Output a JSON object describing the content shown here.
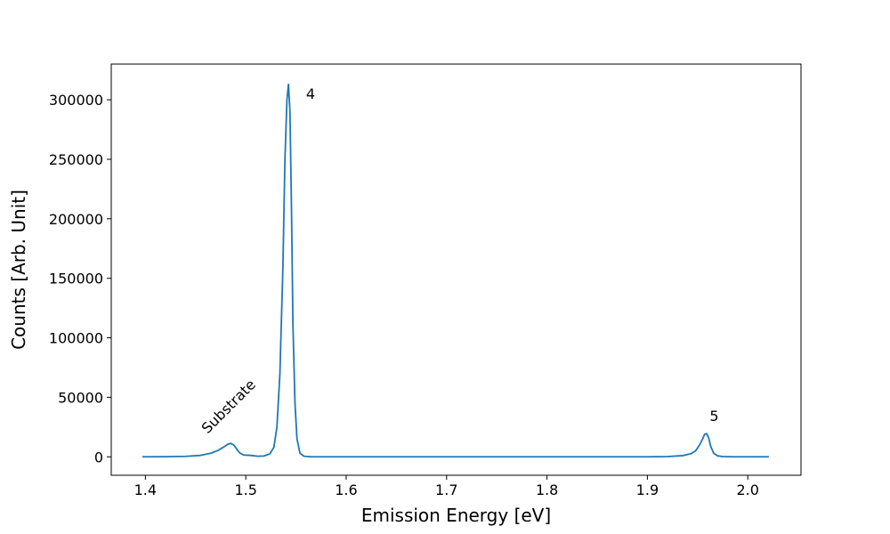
{
  "chart_data": {
    "type": "line",
    "title": "",
    "xlabel": "Emission Energy [eV]",
    "ylabel": "Counts [Arb. Unit]",
    "xlim": [
      1.366,
      2.053
    ],
    "ylim": [
      -15500,
      330000
    ],
    "grid": false,
    "legend": "none",
    "line_color": "#1f77b4",
    "x_ticks": [
      {
        "value": 1.4,
        "label": "1.4"
      },
      {
        "value": 1.5,
        "label": "1.5"
      },
      {
        "value": 1.6,
        "label": "1.6"
      },
      {
        "value": 1.7,
        "label": "1.7"
      },
      {
        "value": 1.8,
        "label": "1.8"
      },
      {
        "value": 1.9,
        "label": "1.9"
      },
      {
        "value": 2.0,
        "label": "2.0"
      }
    ],
    "y_ticks": [
      {
        "value": 0,
        "label": "0"
      },
      {
        "value": 50000,
        "label": "50000"
      },
      {
        "value": 100000,
        "label": "100000"
      },
      {
        "value": 150000,
        "label": "150000"
      },
      {
        "value": 200000,
        "label": "200000"
      },
      {
        "value": 250000,
        "label": "250000"
      },
      {
        "value": 300000,
        "label": "300000"
      }
    ],
    "series": [
      {
        "x": [
          1.397,
          1.42,
          1.44,
          1.455,
          1.465,
          1.472,
          1.478,
          1.482,
          1.485,
          1.488,
          1.491,
          1.494,
          1.498,
          1.505,
          1.512,
          1.518,
          1.524,
          1.528,
          1.531,
          1.534,
          1.537,
          1.539,
          1.541,
          1.5425,
          1.544,
          1.5455,
          1.547,
          1.549,
          1.551,
          1.554,
          1.558,
          1.565,
          1.6,
          1.7,
          1.8,
          1.9,
          1.92,
          1.935,
          1.943,
          1.948,
          1.952,
          1.955,
          1.957,
          1.959,
          1.961,
          1.963,
          1.966,
          1.97,
          1.975,
          1.985,
          2.0,
          2.021
        ],
        "y": [
          0,
          100,
          400,
          1200,
          3000,
          5200,
          8200,
          10500,
          11300,
          10000,
          6500,
          3200,
          1500,
          1200,
          500,
          700,
          2500,
          8000,
          25000,
          70000,
          160000,
          250000,
          300000,
          313000,
          290000,
          210000,
          110000,
          45000,
          15000,
          3000,
          500,
          0,
          0,
          0,
          0,
          0,
          200,
          1000,
          2500,
          5000,
          10000,
          15000,
          19000,
          19500,
          16000,
          9000,
          3000,
          800,
          200,
          0,
          0,
          0
        ]
      }
    ],
    "annotations": [
      {
        "text": "4",
        "x": 1.56,
        "y": 301000
      },
      {
        "text": "5",
        "x": 1.962,
        "y": 30000
      },
      {
        "text": "Substrate",
        "x": 1.462,
        "y": 19000,
        "rotation": -45
      }
    ]
  }
}
